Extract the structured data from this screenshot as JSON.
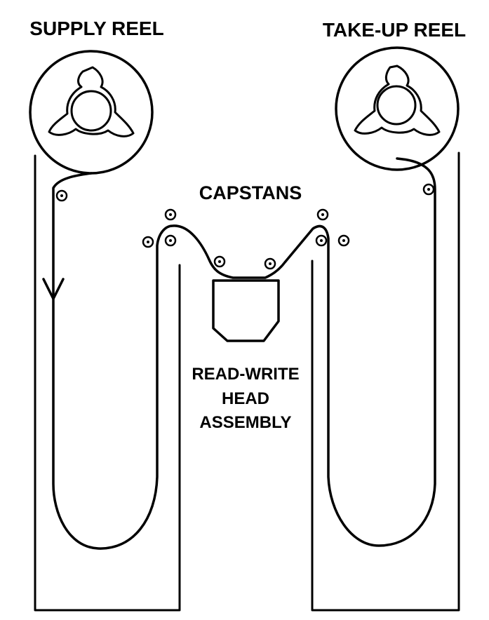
{
  "labels": {
    "supply_reel": "SUPPLY REEL",
    "takeup_reel": "TAKE-UP REEL",
    "capstans": "CAPSTANS",
    "head_line1": "READ-WRITE",
    "head_line2": "HEAD",
    "head_line3": "ASSEMBLY"
  },
  "colors": {
    "ink": "#000000",
    "paper": "#ffffff"
  }
}
